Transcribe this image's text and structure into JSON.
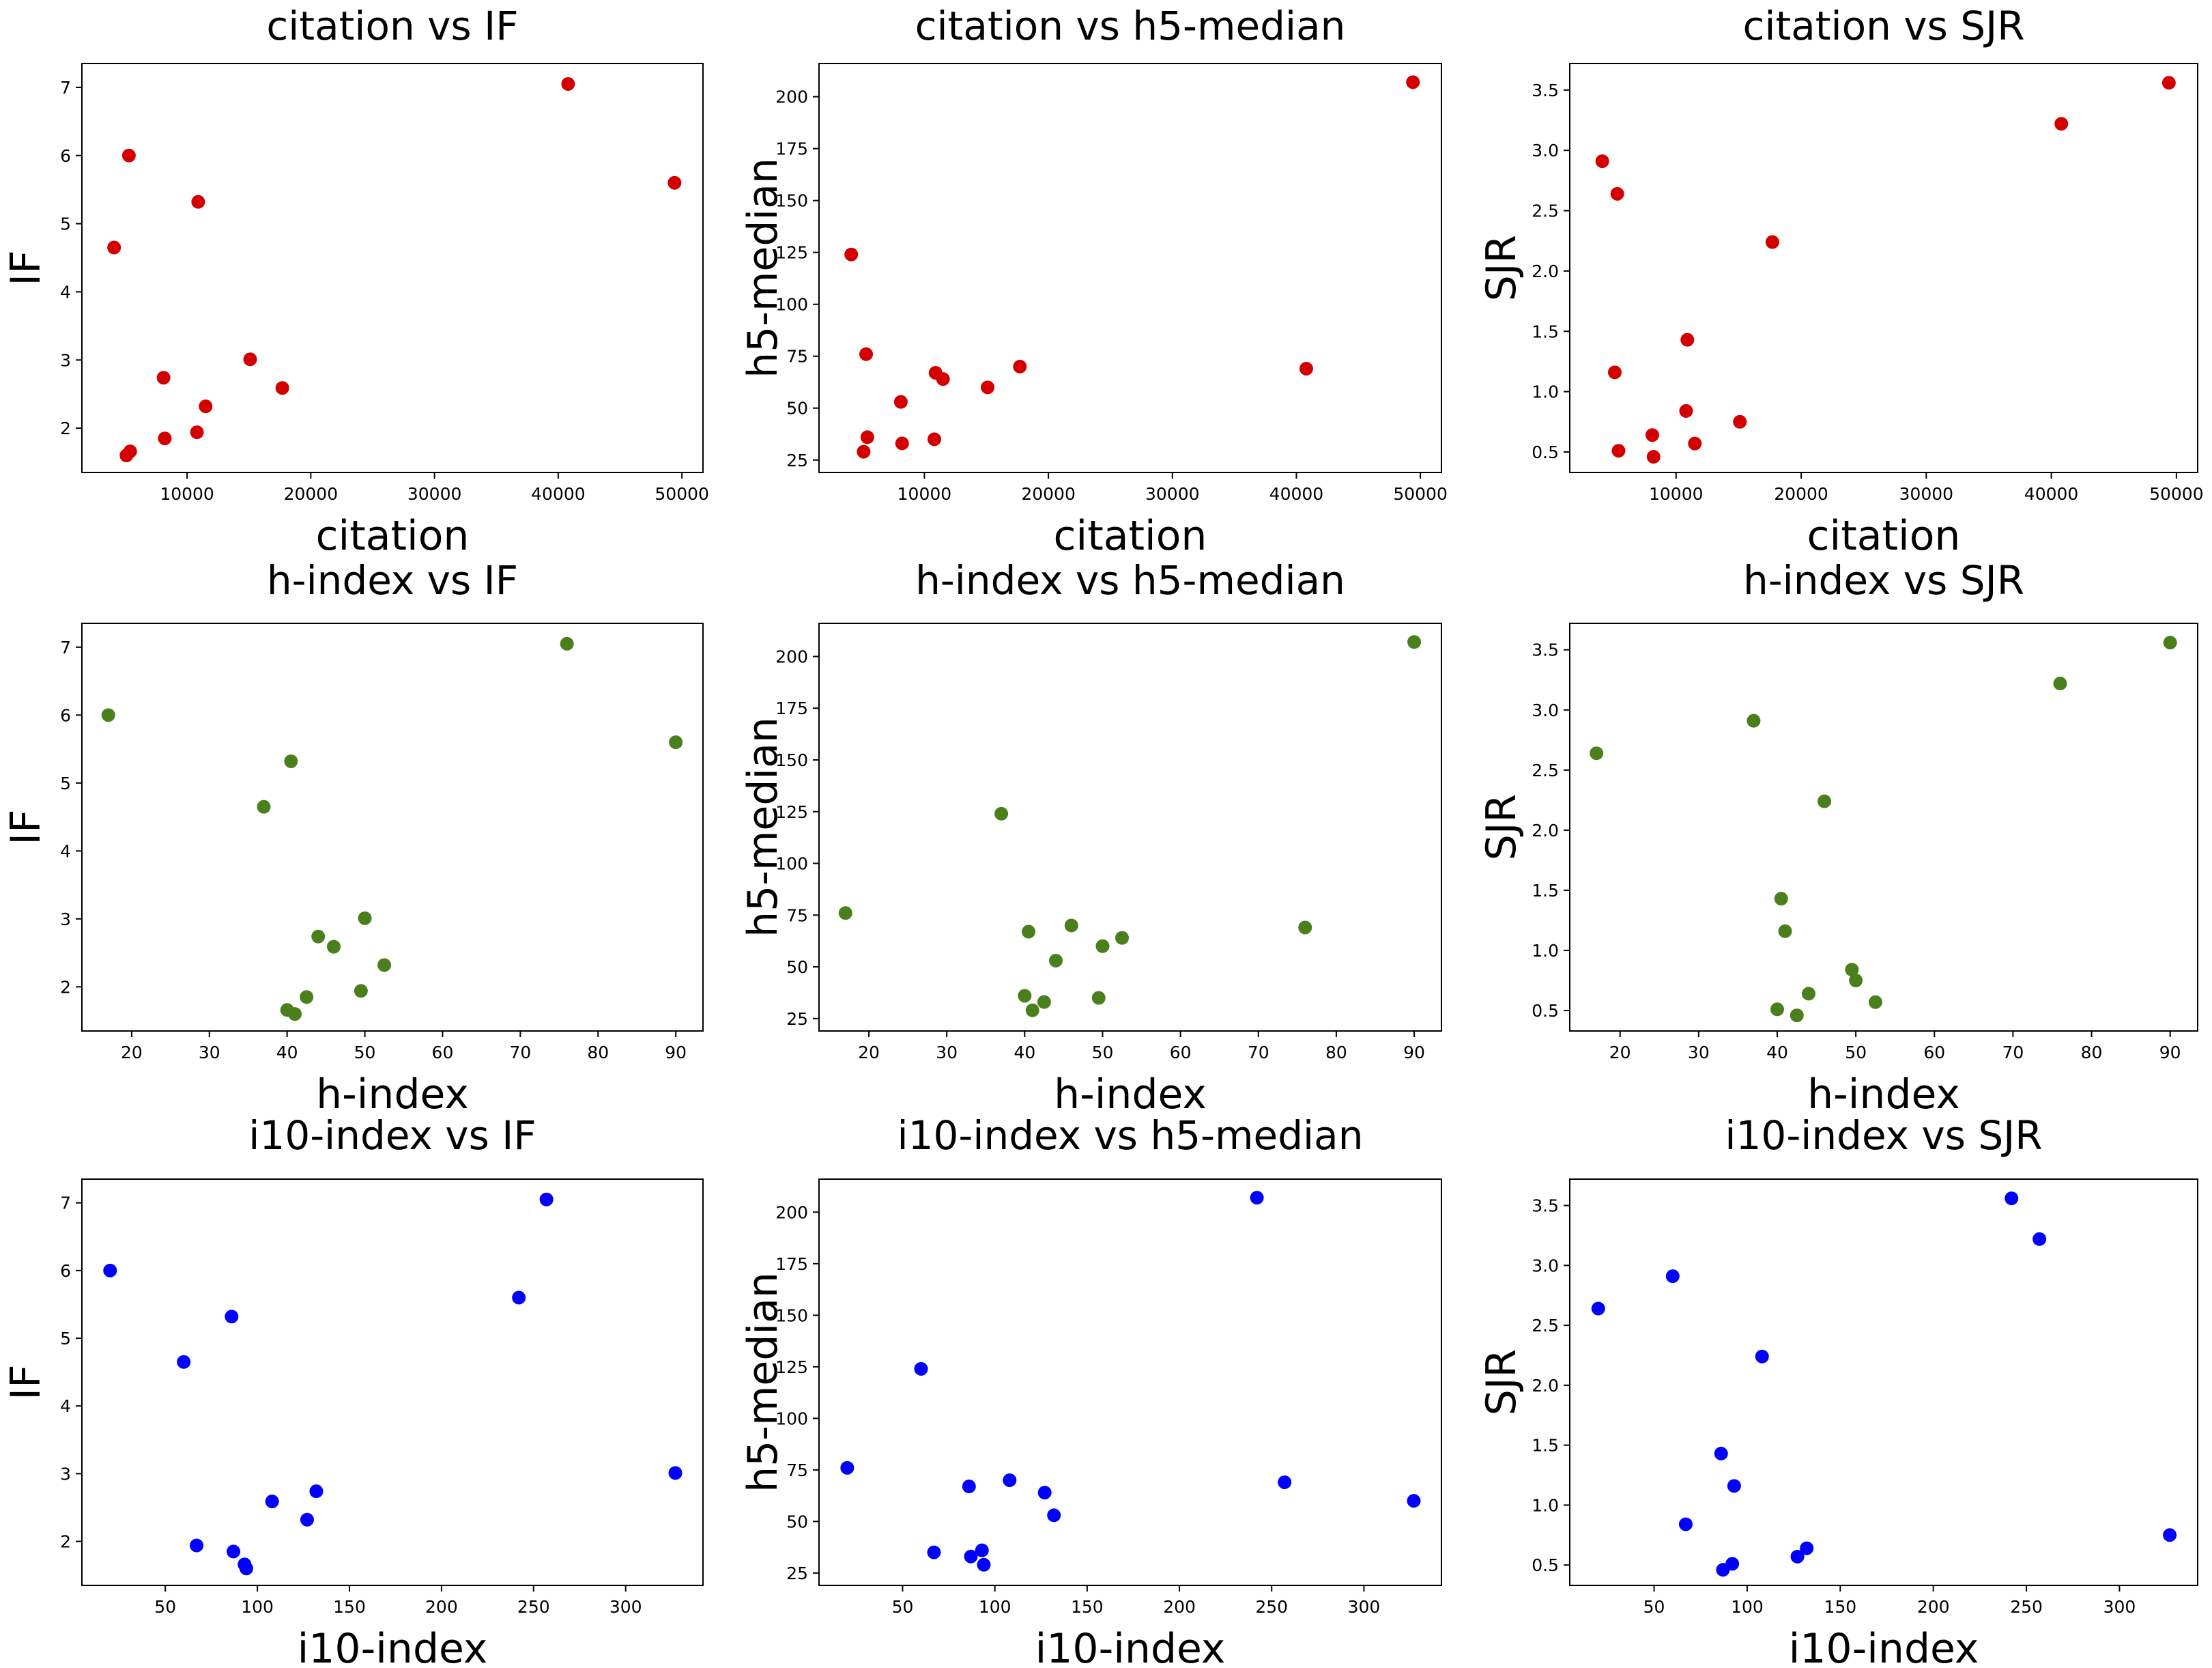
{
  "figure": {
    "background": "#ffffff"
  },
  "chart_data": [
    {
      "type": "scatter",
      "title": "citation vs IF",
      "xlabel": "citation",
      "ylabel": "IF",
      "color": "#d40000",
      "xlim": [
        1500,
        51700
      ],
      "ylim": [
        1.35,
        7.35
      ],
      "xticks": [
        10000,
        20000,
        30000,
        40000,
        50000
      ],
      "yticks": [
        2,
        3,
        4,
        5,
        6,
        7
      ],
      "points": [
        {
          "x": 4100,
          "y": 4.65
        },
        {
          "x": 5300,
          "y": 6.0
        },
        {
          "x": 5100,
          "y": 1.6
        },
        {
          "x": 5400,
          "y": 1.66
        },
        {
          "x": 8100,
          "y": 2.74
        },
        {
          "x": 8200,
          "y": 1.85
        },
        {
          "x": 10800,
          "y": 1.94
        },
        {
          "x": 10900,
          "y": 5.32
        },
        {
          "x": 11500,
          "y": 2.32
        },
        {
          "x": 15100,
          "y": 3.01
        },
        {
          "x": 17700,
          "y": 2.59
        },
        {
          "x": 40800,
          "y": 7.05
        },
        {
          "x": 49400,
          "y": 5.6
        }
      ]
    },
    {
      "type": "scatter",
      "title": "citation vs h5-median",
      "xlabel": "citation",
      "ylabel": "h5-median",
      "color": "#d40000",
      "xlim": [
        1500,
        51700
      ],
      "ylim": [
        19,
        216
      ],
      "xticks": [
        10000,
        20000,
        30000,
        40000,
        50000
      ],
      "yticks": [
        25,
        50,
        75,
        100,
        125,
        150,
        175,
        200
      ],
      "points": [
        {
          "x": 4100,
          "y": 124
        },
        {
          "x": 5300,
          "y": 76
        },
        {
          "x": 5100,
          "y": 29
        },
        {
          "x": 5400,
          "y": 36
        },
        {
          "x": 8100,
          "y": 53
        },
        {
          "x": 8200,
          "y": 33
        },
        {
          "x": 10800,
          "y": 35
        },
        {
          "x": 10900,
          "y": 67
        },
        {
          "x": 11500,
          "y": 64
        },
        {
          "x": 15100,
          "y": 60
        },
        {
          "x": 17700,
          "y": 70
        },
        {
          "x": 40800,
          "y": 69
        },
        {
          "x": 49400,
          "y": 207
        }
      ]
    },
    {
      "type": "scatter",
      "title": "citation vs SJR",
      "xlabel": "citation",
      "ylabel": "SJR",
      "color": "#d40000",
      "xlim": [
        1500,
        51700
      ],
      "ylim": [
        0.33,
        3.72
      ],
      "xticks": [
        10000,
        20000,
        30000,
        40000,
        50000
      ],
      "yticks": [
        0.5,
        1.0,
        1.5,
        2.0,
        2.5,
        3.0,
        3.5
      ],
      "points": [
        {
          "x": 4100,
          "y": 2.91
        },
        {
          "x": 5300,
          "y": 2.64
        },
        {
          "x": 5100,
          "y": 1.16
        },
        {
          "x": 5400,
          "y": 0.51
        },
        {
          "x": 8100,
          "y": 0.64
        },
        {
          "x": 8200,
          "y": 0.46
        },
        {
          "x": 10800,
          "y": 0.84
        },
        {
          "x": 10900,
          "y": 1.43
        },
        {
          "x": 11500,
          "y": 0.57
        },
        {
          "x": 15100,
          "y": 0.75
        },
        {
          "x": 17700,
          "y": 2.24
        },
        {
          "x": 40800,
          "y": 3.22
        },
        {
          "x": 49400,
          "y": 3.56
        }
      ]
    },
    {
      "type": "scatter",
      "title": "h-index vs IF",
      "xlabel": "h-index",
      "ylabel": "IF",
      "color": "#4a7f1c",
      "xlim": [
        13.6,
        93.5
      ],
      "ylim": [
        1.35,
        7.35
      ],
      "xticks": [
        20,
        30,
        40,
        50,
        60,
        70,
        80,
        90
      ],
      "yticks": [
        2,
        3,
        4,
        5,
        6,
        7
      ],
      "points": [
        {
          "x": 17,
          "y": 6.0
        },
        {
          "x": 37,
          "y": 4.65
        },
        {
          "x": 40.5,
          "y": 5.32
        },
        {
          "x": 40,
          "y": 1.66
        },
        {
          "x": 41,
          "y": 1.6
        },
        {
          "x": 42.5,
          "y": 1.85
        },
        {
          "x": 44,
          "y": 2.74
        },
        {
          "x": 46,
          "y": 2.59
        },
        {
          "x": 49.5,
          "y": 1.94
        },
        {
          "x": 50,
          "y": 3.01
        },
        {
          "x": 52.5,
          "y": 2.32
        },
        {
          "x": 76,
          "y": 7.05
        },
        {
          "x": 90,
          "y": 5.6
        }
      ]
    },
    {
      "type": "scatter",
      "title": "h-index vs h5-median",
      "xlabel": "h-index",
      "ylabel": "h5-median",
      "color": "#4a7f1c",
      "xlim": [
        13.6,
        93.5
      ],
      "ylim": [
        19,
        216
      ],
      "xticks": [
        20,
        30,
        40,
        50,
        60,
        70,
        80,
        90
      ],
      "yticks": [
        25,
        50,
        75,
        100,
        125,
        150,
        175,
        200
      ],
      "points": [
        {
          "x": 17,
          "y": 76
        },
        {
          "x": 37,
          "y": 124
        },
        {
          "x": 40.5,
          "y": 67
        },
        {
          "x": 40,
          "y": 36
        },
        {
          "x": 41,
          "y": 29
        },
        {
          "x": 42.5,
          "y": 33
        },
        {
          "x": 44,
          "y": 53
        },
        {
          "x": 46,
          "y": 70
        },
        {
          "x": 49.5,
          "y": 35
        },
        {
          "x": 50,
          "y": 60
        },
        {
          "x": 52.5,
          "y": 64
        },
        {
          "x": 76,
          "y": 69
        },
        {
          "x": 90,
          "y": 207
        }
      ]
    },
    {
      "type": "scatter",
      "title": "h-index vs SJR",
      "xlabel": "h-index",
      "ylabel": "SJR",
      "color": "#4a7f1c",
      "xlim": [
        13.6,
        93.5
      ],
      "ylim": [
        0.33,
        3.72
      ],
      "xticks": [
        20,
        30,
        40,
        50,
        60,
        70,
        80,
        90
      ],
      "yticks": [
        0.5,
        1.0,
        1.5,
        2.0,
        2.5,
        3.0,
        3.5
      ],
      "points": [
        {
          "x": 17,
          "y": 2.64
        },
        {
          "x": 37,
          "y": 2.91
        },
        {
          "x": 40.5,
          "y": 1.43
        },
        {
          "x": 40,
          "y": 0.51
        },
        {
          "x": 41,
          "y": 1.16
        },
        {
          "x": 42.5,
          "y": 0.46
        },
        {
          "x": 44,
          "y": 0.64
        },
        {
          "x": 46,
          "y": 2.24
        },
        {
          "x": 49.5,
          "y": 0.84
        },
        {
          "x": 50,
          "y": 0.75
        },
        {
          "x": 52.5,
          "y": 0.57
        },
        {
          "x": 76,
          "y": 3.22
        },
        {
          "x": 90,
          "y": 3.56
        }
      ]
    },
    {
      "type": "scatter",
      "title": "i10-index vs IF",
      "xlabel": "i10-index",
      "ylabel": "IF",
      "color": "#0000ff",
      "xlim": [
        4.7,
        342
      ],
      "ylim": [
        1.35,
        7.35
      ],
      "xticks": [
        50,
        100,
        150,
        200,
        250,
        300
      ],
      "yticks": [
        2,
        3,
        4,
        5,
        6,
        7
      ],
      "points": [
        {
          "x": 20,
          "y": 6.0
        },
        {
          "x": 60,
          "y": 4.65
        },
        {
          "x": 86,
          "y": 5.32
        },
        {
          "x": 67,
          "y": 1.94
        },
        {
          "x": 87,
          "y": 1.85
        },
        {
          "x": 93,
          "y": 1.66
        },
        {
          "x": 94,
          "y": 1.6
        },
        {
          "x": 108,
          "y": 2.59
        },
        {
          "x": 127,
          "y": 2.32
        },
        {
          "x": 132,
          "y": 2.74
        },
        {
          "x": 242,
          "y": 5.6
        },
        {
          "x": 257,
          "y": 7.05
        },
        {
          "x": 327,
          "y": 3.01
        }
      ]
    },
    {
      "type": "scatter",
      "title": "i10-index vs h5-median",
      "xlabel": "i10-index",
      "ylabel": "h5-median",
      "color": "#0000ff",
      "xlim": [
        4.7,
        342
      ],
      "ylim": [
        19,
        216
      ],
      "xticks": [
        50,
        100,
        150,
        200,
        250,
        300
      ],
      "yticks": [
        25,
        50,
        75,
        100,
        125,
        150,
        175,
        200
      ],
      "points": [
        {
          "x": 20,
          "y": 76
        },
        {
          "x": 60,
          "y": 124
        },
        {
          "x": 86,
          "y": 67
        },
        {
          "x": 67,
          "y": 35
        },
        {
          "x": 87,
          "y": 33
        },
        {
          "x": 93,
          "y": 36
        },
        {
          "x": 94,
          "y": 29
        },
        {
          "x": 108,
          "y": 70
        },
        {
          "x": 127,
          "y": 64
        },
        {
          "x": 132,
          "y": 53
        },
        {
          "x": 242,
          "y": 207
        },
        {
          "x": 257,
          "y": 69
        },
        {
          "x": 327,
          "y": 60
        }
      ]
    },
    {
      "type": "scatter",
      "title": "i10-index vs SJR",
      "xlabel": "i10-index",
      "ylabel": "SJR",
      "color": "#0000ff",
      "xlim": [
        4.7,
        342
      ],
      "ylim": [
        0.33,
        3.72
      ],
      "xticks": [
        50,
        100,
        150,
        200,
        250,
        300
      ],
      "yticks": [
        0.5,
        1.0,
        1.5,
        2.0,
        2.5,
        3.0,
        3.5
      ],
      "points": [
        {
          "x": 20,
          "y": 2.64
        },
        {
          "x": 60,
          "y": 2.91
        },
        {
          "x": 86,
          "y": 1.43
        },
        {
          "x": 67,
          "y": 0.84
        },
        {
          "x": 87,
          "y": 0.46
        },
        {
          "x": 93,
          "y": 1.16
        },
        {
          "x": 92,
          "y": 0.51
        },
        {
          "x": 108,
          "y": 2.24
        },
        {
          "x": 127,
          "y": 0.57
        },
        {
          "x": 132,
          "y": 0.64
        },
        {
          "x": 242,
          "y": 3.56
        },
        {
          "x": 257,
          "y": 3.22
        },
        {
          "x": 327,
          "y": 0.75
        }
      ]
    }
  ]
}
